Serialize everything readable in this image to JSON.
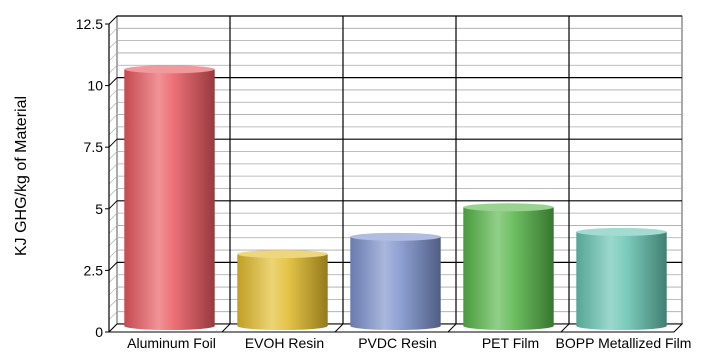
{
  "chart_data": {
    "type": "bar",
    "style": "3d-cylinder",
    "categories": [
      "Aluminum Foil",
      "EVOH Resin",
      "PVDC Resin",
      "PET Film",
      "BOPP Metallized Film"
    ],
    "values": [
      10.5,
      3.0,
      3.7,
      4.9,
      3.9
    ],
    "colors": [
      "#e8575e",
      "#e2bb2a",
      "#7b90cb",
      "#55b548",
      "#65c3b0"
    ],
    "title": "",
    "xlabel": "",
    "ylabel": "KJ GHG/kg of Material",
    "ylim": [
      0,
      12.5
    ],
    "yticks": [
      "0",
      "2.5",
      "5",
      "7.5",
      "10",
      "12.5"
    ],
    "grid": true,
    "legend": "none"
  }
}
